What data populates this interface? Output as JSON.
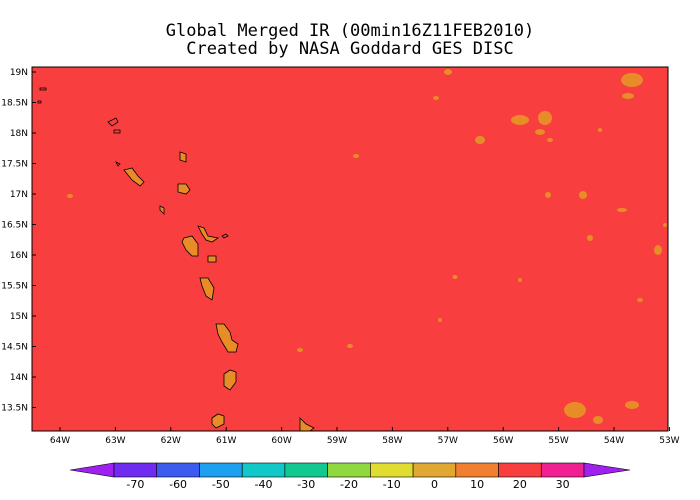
{
  "title": {
    "line1": "Global Merged IR (00min16Z11FEB2010)",
    "line2": "Created by NASA Goddard GES DISC"
  },
  "map": {
    "lat_labels": [
      "19N",
      "18.5N",
      "18N",
      "17.5N",
      "17N",
      "16.5N",
      "16N",
      "15.5N",
      "15N",
      "14.5N",
      "14N",
      "13.5N"
    ],
    "lon_labels": [
      "64W",
      "63W",
      "62W",
      "61W",
      "60W",
      "59W",
      "58W",
      "57W",
      "56W",
      "55W",
      "54W",
      "53W"
    ],
    "background_color": "#f83e3e",
    "cloud_color": "#e88c28",
    "coastline_color": "#000000",
    "islands_depicted": true
  },
  "colorbar": {
    "labels": [
      "-70",
      "-60",
      "-50",
      "-40",
      "-30",
      "-20",
      "-10",
      "0",
      "10",
      "20",
      "30"
    ],
    "colors": [
      "#a020f0",
      "#6f2cf0",
      "#3c5cf0",
      "#1ea0f0",
      "#10c8c8",
      "#10c890",
      "#90d840",
      "#e0dc30",
      "#e0a830",
      "#f08030",
      "#f83e3e",
      "#f02090",
      "#a020f0"
    ]
  }
}
